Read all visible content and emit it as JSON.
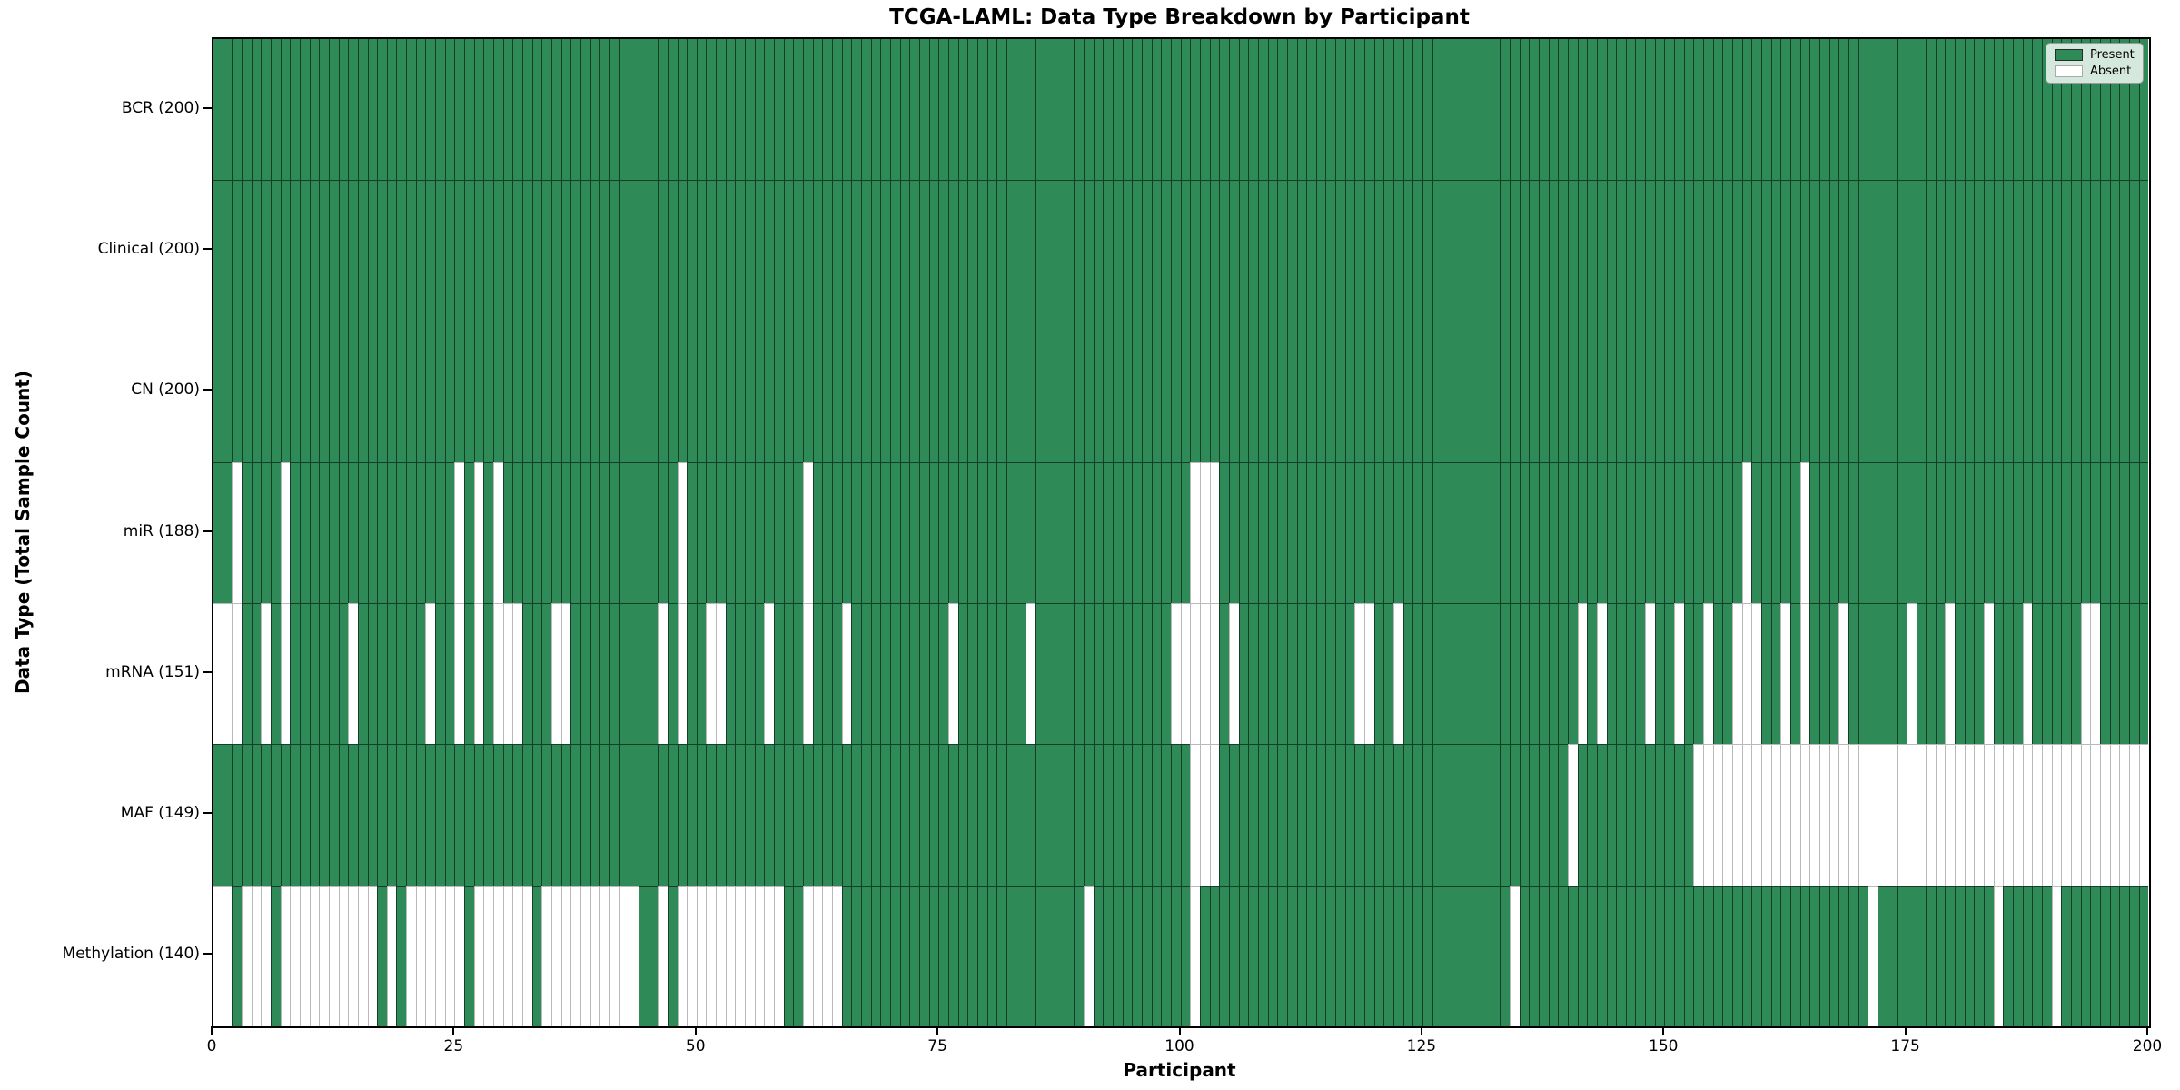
{
  "chart_data": {
    "type": "heatmap",
    "title": "TCGA-LAML: Data Type Breakdown by Participant",
    "xlabel": "Participant",
    "ylabel": "Data Type (Total Sample Count)",
    "n_participants": 200,
    "x_ticks": [
      0,
      25,
      50,
      75,
      100,
      125,
      150,
      175,
      200
    ],
    "legend_position": "upper right",
    "grid": "per-cell edges",
    "colors": {
      "present": "#2e8b57",
      "absent": "#ffffff",
      "edge_present": "rgba(0,0,0,0.55)",
      "edge_absent": "#b9b9b9",
      "legend_bg": "#d5e8dd"
    },
    "legend": [
      {
        "label": "Present",
        "swatch": "present"
      },
      {
        "label": "Absent",
        "swatch": "absent"
      }
    ],
    "rows": [
      {
        "label": "BCR (200)",
        "data_type": "BCR",
        "present_count": 200,
        "absent_participants": []
      },
      {
        "label": "Clinical (200)",
        "data_type": "Clinical",
        "present_count": 200,
        "absent_participants": []
      },
      {
        "label": "CN (200)",
        "data_type": "CN",
        "present_count": 200,
        "absent_participants": []
      },
      {
        "label": "miR (188)",
        "data_type": "miR",
        "present_count": 188,
        "absent_participants": [
          2,
          7,
          25,
          27,
          29,
          48,
          61,
          101,
          102,
          103,
          158,
          164
        ]
      },
      {
        "label": "mRNA (151)",
        "data_type": "mRNA",
        "present_count": 151,
        "absent_participants": [
          0,
          1,
          2,
          5,
          7,
          14,
          22,
          25,
          27,
          29,
          30,
          31,
          35,
          36,
          46,
          48,
          51,
          52,
          57,
          61,
          65,
          76,
          84,
          99,
          100,
          101,
          102,
          103,
          105,
          118,
          119,
          122,
          141,
          143,
          148,
          151,
          154,
          157,
          158,
          159,
          162,
          164,
          168,
          175,
          179,
          183,
          187,
          193,
          194
        ]
      },
      {
        "label": "MAF (149)",
        "data_type": "MAF",
        "present_count": 149,
        "absent_participants": [
          101,
          102,
          103,
          140,
          153,
          154,
          155,
          156,
          157,
          158,
          159,
          160,
          161,
          162,
          163,
          164,
          165,
          166,
          167,
          168,
          169,
          170,
          171,
          172,
          173,
          174,
          175,
          176,
          177,
          178,
          179,
          180,
          181,
          182,
          183,
          184,
          185,
          186,
          187,
          188,
          189,
          190,
          191,
          192,
          193,
          194,
          195,
          196,
          197,
          198,
          199
        ]
      },
      {
        "label": "Methylation (140)",
        "data_type": "Methylation",
        "present_count": 140,
        "absent_participants": [
          0,
          1,
          3,
          4,
          5,
          7,
          8,
          9,
          10,
          11,
          12,
          13,
          14,
          15,
          16,
          18,
          20,
          21,
          22,
          23,
          24,
          25,
          27,
          28,
          29,
          30,
          31,
          32,
          34,
          35,
          36,
          37,
          38,
          39,
          40,
          41,
          42,
          43,
          46,
          48,
          49,
          50,
          51,
          52,
          53,
          54,
          55,
          56,
          57,
          58,
          61,
          62,
          63,
          64,
          90,
          101,
          134,
          171,
          184,
          190
        ]
      }
    ]
  }
}
